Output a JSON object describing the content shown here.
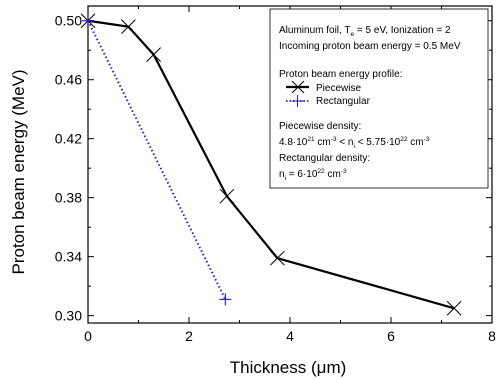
{
  "chart_data": {
    "type": "line",
    "xlabel": "Thickness (μm)",
    "ylabel": "Proton beam energy (MeV)",
    "xlim": [
      0,
      8
    ],
    "ylim": [
      0.295,
      0.51
    ],
    "x_ticks": [
      0,
      2,
      4,
      6,
      8
    ],
    "x_tick_labels": [
      "0",
      "2",
      "4",
      "6",
      "8"
    ],
    "y_ticks": [
      0.3,
      0.34,
      0.38,
      0.42,
      0.46,
      0.5
    ],
    "y_tick_labels": [
      "0.30",
      "0.34",
      "0.38",
      "0.42",
      "0.46",
      "0.50"
    ],
    "grid": false,
    "legend_position": "top-right",
    "series": [
      {
        "name": "Piecewise",
        "color": "#000000",
        "line_style": "solid",
        "marker": "x",
        "x": [
          0,
          0.8,
          1.3,
          2.75,
          3.75,
          7.25
        ],
        "y": [
          0.5,
          0.496,
          0.477,
          0.381,
          0.339,
          0.305
        ]
      },
      {
        "name": "Rectangular",
        "color": "#2222cc",
        "line_style": "dotted",
        "marker": "+",
        "x": [
          0,
          2.72
        ],
        "y": [
          0.5,
          0.311
        ]
      }
    ],
    "info_box": {
      "line1_pre": "Aluminum foil, T",
      "line1_sub": "e",
      "line1_post": " = 5 eV, Ionization = 2",
      "line2": "Incoming proton beam energy = 0.5 MeV",
      "legend_title": "Proton beam energy profile:",
      "piecewise_density_title": "Piecewise density:",
      "pd_a": "4.8·10",
      "pd_a_sup": "21",
      "pd_b": " cm",
      "pd_b_sup": "-3",
      "pd_c": " < n",
      "pd_c_sub": "i",
      "pd_d": " < 5.75·10",
      "pd_d_sup": "22",
      "pd_e": " cm",
      "pd_e_sup": "-3",
      "rectangular_density_title": "Rectangular density:",
      "rd_a": "n",
      "rd_a_sub": "i",
      "rd_b": " = 6·10",
      "rd_b_sup": "22",
      "rd_c": " cm",
      "rd_c_sup": "-3"
    }
  }
}
